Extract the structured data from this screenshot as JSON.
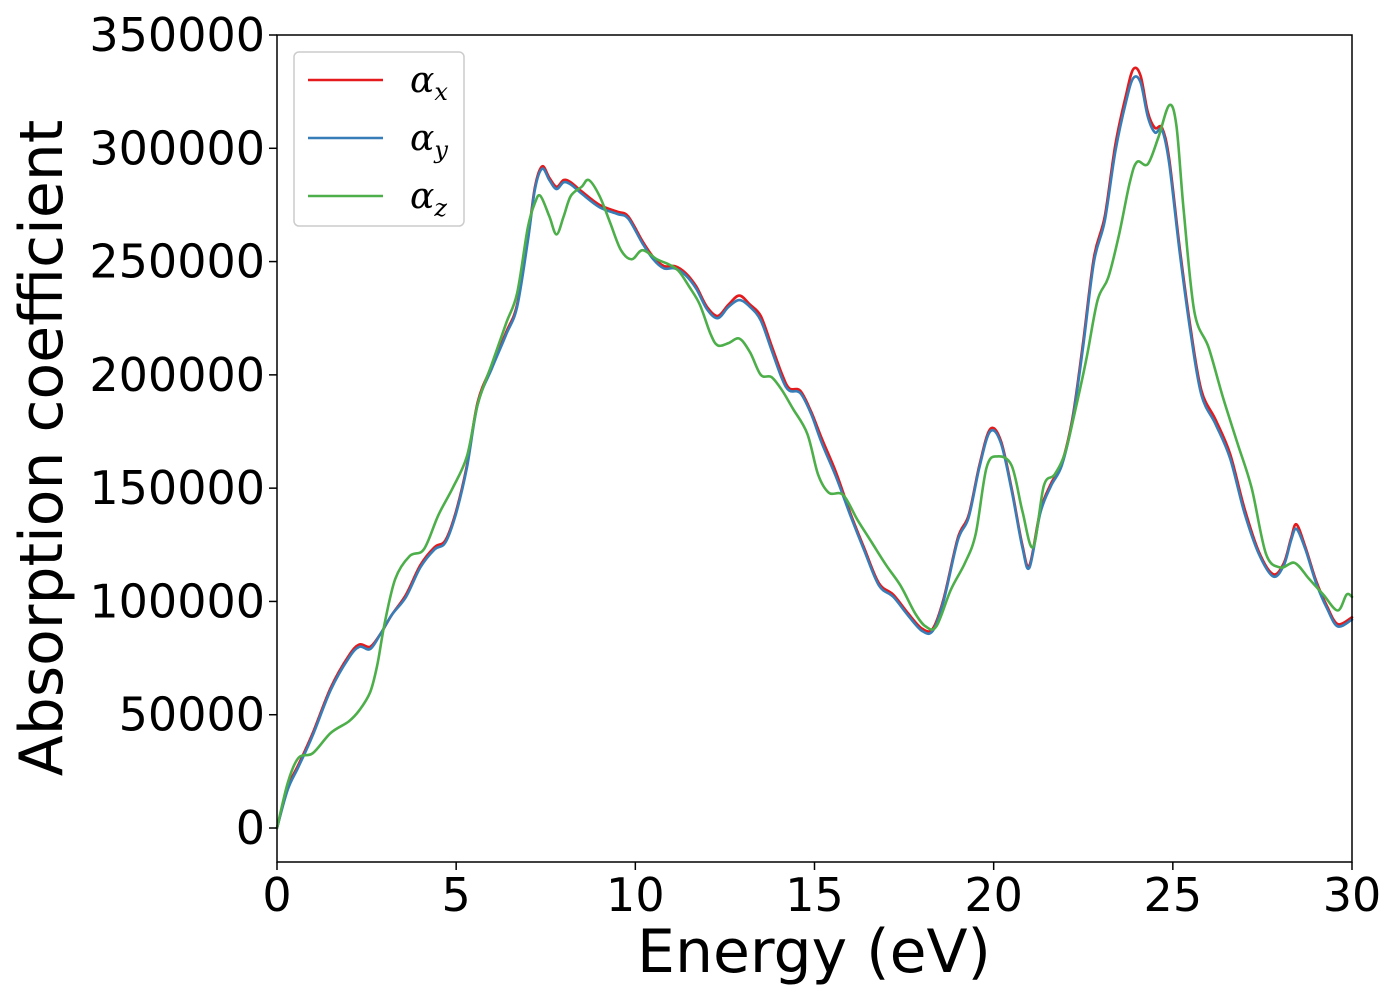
{
  "chart_data": {
    "type": "line",
    "title": "",
    "xlabel": "Energy (eV)",
    "ylabel": "Absorption coefficient",
    "xlim": [
      0,
      30
    ],
    "ylim": [
      -15000,
      350000
    ],
    "xticks": [
      "0",
      "5",
      "10",
      "15",
      "20",
      "25",
      "30"
    ],
    "yticks": [
      "0",
      "50000",
      "100000",
      "150000",
      "200000",
      "250000",
      "300000",
      "350000"
    ],
    "grid": false,
    "legend_position": "top-left",
    "series": [
      {
        "name": "α_x",
        "name_base": "α",
        "name_sub": "x",
        "color": "#e41a1c",
        "points": [
          [
            0,
            0
          ],
          [
            0.3,
            18000
          ],
          [
            0.6,
            28000
          ],
          [
            1.0,
            42000
          ],
          [
            1.5,
            62000
          ],
          [
            2.0,
            76000
          ],
          [
            2.3,
            81000
          ],
          [
            2.6,
            80000
          ],
          [
            2.9,
            86000
          ],
          [
            3.2,
            94000
          ],
          [
            3.6,
            103000
          ],
          [
            4.0,
            116000
          ],
          [
            4.4,
            124000
          ],
          [
            4.7,
            127000
          ],
          [
            5.0,
            140000
          ],
          [
            5.3,
            160000
          ],
          [
            5.6,
            188000
          ],
          [
            6.0,
            204000
          ],
          [
            6.4,
            219000
          ],
          [
            6.7,
            231000
          ],
          [
            7.0,
            260000
          ],
          [
            7.2,
            283000
          ],
          [
            7.4,
            292000
          ],
          [
            7.6,
            287000
          ],
          [
            7.8,
            283000
          ],
          [
            8.0,
            286000
          ],
          [
            8.2,
            285000
          ],
          [
            8.5,
            281000
          ],
          [
            9.0,
            275000
          ],
          [
            9.5,
            272000
          ],
          [
            9.8,
            270000
          ],
          [
            10.2,
            259000
          ],
          [
            10.5,
            252000
          ],
          [
            10.8,
            248000
          ],
          [
            11.1,
            248000
          ],
          [
            11.4,
            245000
          ],
          [
            11.7,
            239000
          ],
          [
            12.0,
            230000
          ],
          [
            12.3,
            226000
          ],
          [
            12.6,
            231000
          ],
          [
            12.9,
            235000
          ],
          [
            13.2,
            231000
          ],
          [
            13.5,
            226000
          ],
          [
            13.8,
            213000
          ],
          [
            14.1,
            200000
          ],
          [
            14.3,
            194000
          ],
          [
            14.6,
            193000
          ],
          [
            14.9,
            184000
          ],
          [
            15.2,
            172000
          ],
          [
            15.6,
            157000
          ],
          [
            16.0,
            139000
          ],
          [
            16.4,
            123000
          ],
          [
            16.8,
            108000
          ],
          [
            17.2,
            103000
          ],
          [
            17.6,
            95000
          ],
          [
            18.0,
            88000
          ],
          [
            18.3,
            88000
          ],
          [
            18.6,
            101000
          ],
          [
            19.0,
            128000
          ],
          [
            19.3,
            138000
          ],
          [
            19.6,
            160000
          ],
          [
            19.9,
            176000
          ],
          [
            20.2,
            171000
          ],
          [
            20.5,
            150000
          ],
          [
            20.8,
            125000
          ],
          [
            21.0,
            116000
          ],
          [
            21.3,
            140000
          ],
          [
            21.6,
            152000
          ],
          [
            21.9,
            161000
          ],
          [
            22.2,
            181000
          ],
          [
            22.5,
            215000
          ],
          [
            22.8,
            252000
          ],
          [
            23.1,
            270000
          ],
          [
            23.4,
            302000
          ],
          [
            23.7,
            324000
          ],
          [
            23.9,
            335000
          ],
          [
            24.1,
            332000
          ],
          [
            24.3,
            316000
          ],
          [
            24.5,
            309000
          ],
          [
            24.7,
            309000
          ],
          [
            24.9,
            295000
          ],
          [
            25.2,
            255000
          ],
          [
            25.5,
            220000
          ],
          [
            25.8,
            193000
          ],
          [
            26.2,
            180000
          ],
          [
            26.6,
            165000
          ],
          [
            27.0,
            141000
          ],
          [
            27.4,
            122000
          ],
          [
            27.8,
            112000
          ],
          [
            28.1,
            117000
          ],
          [
            28.3,
            128000
          ],
          [
            28.45,
            134000
          ],
          [
            28.7,
            124000
          ],
          [
            29.0,
            109000
          ],
          [
            29.3,
            98000
          ],
          [
            29.6,
            90000
          ],
          [
            30.0,
            93000
          ]
        ]
      },
      {
        "name": "α_y",
        "name_base": "α",
        "name_sub": "y",
        "color": "#377eb8",
        "points": [
          [
            0,
            0
          ],
          [
            0.3,
            17000
          ],
          [
            0.6,
            27000
          ],
          [
            1.0,
            41000
          ],
          [
            1.5,
            61000
          ],
          [
            2.0,
            75000
          ],
          [
            2.3,
            80000
          ],
          [
            2.6,
            79000
          ],
          [
            2.9,
            86000
          ],
          [
            3.2,
            94000
          ],
          [
            3.6,
            102000
          ],
          [
            4.0,
            115000
          ],
          [
            4.4,
            123000
          ],
          [
            4.7,
            126000
          ],
          [
            5.0,
            139000
          ],
          [
            5.3,
            159000
          ],
          [
            5.6,
            187000
          ],
          [
            6.0,
            203000
          ],
          [
            6.4,
            218000
          ],
          [
            6.7,
            230000
          ],
          [
            7.0,
            259000
          ],
          [
            7.2,
            282000
          ],
          [
            7.4,
            291000
          ],
          [
            7.6,
            286000
          ],
          [
            7.8,
            282000
          ],
          [
            8.0,
            285000
          ],
          [
            8.2,
            284000
          ],
          [
            8.5,
            280000
          ],
          [
            9.0,
            274000
          ],
          [
            9.5,
            271000
          ],
          [
            9.8,
            269000
          ],
          [
            10.2,
            258000
          ],
          [
            10.5,
            251000
          ],
          [
            10.8,
            247000
          ],
          [
            11.1,
            247000
          ],
          [
            11.4,
            244000
          ],
          [
            11.7,
            238000
          ],
          [
            12.0,
            229000
          ],
          [
            12.3,
            225000
          ],
          [
            12.6,
            230000
          ],
          [
            12.9,
            233000
          ],
          [
            13.2,
            230000
          ],
          [
            13.5,
            224000
          ],
          [
            13.8,
            211000
          ],
          [
            14.1,
            198000
          ],
          [
            14.3,
            193000
          ],
          [
            14.6,
            192000
          ],
          [
            14.9,
            183000
          ],
          [
            15.2,
            170000
          ],
          [
            15.6,
            155000
          ],
          [
            16.0,
            138000
          ],
          [
            16.4,
            122000
          ],
          [
            16.8,
            107000
          ],
          [
            17.2,
            102000
          ],
          [
            17.6,
            94000
          ],
          [
            18.0,
            87000
          ],
          [
            18.3,
            87000
          ],
          [
            18.6,
            100000
          ],
          [
            19.0,
            127000
          ],
          [
            19.3,
            137000
          ],
          [
            19.6,
            159000
          ],
          [
            19.9,
            175000
          ],
          [
            20.2,
            170000
          ],
          [
            20.5,
            149000
          ],
          [
            20.8,
            124000
          ],
          [
            21.0,
            115000
          ],
          [
            21.3,
            139000
          ],
          [
            21.6,
            151000
          ],
          [
            21.9,
            160000
          ],
          [
            22.2,
            180000
          ],
          [
            22.5,
            213000
          ],
          [
            22.8,
            250000
          ],
          [
            23.1,
            268000
          ],
          [
            23.4,
            299000
          ],
          [
            23.7,
            321000
          ],
          [
            23.9,
            331000
          ],
          [
            24.1,
            329000
          ],
          [
            24.3,
            314000
          ],
          [
            24.5,
            307000
          ],
          [
            24.7,
            308000
          ],
          [
            24.9,
            293000
          ],
          [
            25.2,
            253000
          ],
          [
            25.5,
            218000
          ],
          [
            25.8,
            191000
          ],
          [
            26.2,
            178000
          ],
          [
            26.6,
            163000
          ],
          [
            27.0,
            139000
          ],
          [
            27.4,
            121000
          ],
          [
            27.8,
            111000
          ],
          [
            28.1,
            116000
          ],
          [
            28.3,
            127000
          ],
          [
            28.45,
            132000
          ],
          [
            28.7,
            123000
          ],
          [
            29.0,
            108000
          ],
          [
            29.3,
            97000
          ],
          [
            29.6,
            89000
          ],
          [
            30.0,
            92000
          ]
        ]
      },
      {
        "name": "α_z",
        "name_base": "α",
        "name_sub": "z",
        "color": "#4daf4a",
        "points": [
          [
            0,
            0
          ],
          [
            0.3,
            20000
          ],
          [
            0.6,
            31000
          ],
          [
            1.0,
            33000
          ],
          [
            1.5,
            42000
          ],
          [
            2.0,
            47000
          ],
          [
            2.3,
            52000
          ],
          [
            2.6,
            60000
          ],
          [
            2.8,
            72000
          ],
          [
            3.0,
            90000
          ],
          [
            3.3,
            110000
          ],
          [
            3.7,
            120000
          ],
          [
            4.1,
            123000
          ],
          [
            4.5,
            138000
          ],
          [
            4.9,
            150000
          ],
          [
            5.3,
            164000
          ],
          [
            5.6,
            187000
          ],
          [
            6.0,
            205000
          ],
          [
            6.4,
            223000
          ],
          [
            6.7,
            236000
          ],
          [
            7.0,
            265000
          ],
          [
            7.2,
            276000
          ],
          [
            7.35,
            279000
          ],
          [
            7.6,
            270000
          ],
          [
            7.8,
            262000
          ],
          [
            8.0,
            270000
          ],
          [
            8.2,
            279000
          ],
          [
            8.5,
            283000
          ],
          [
            8.7,
            286000
          ],
          [
            9.0,
            279000
          ],
          [
            9.3,
            267000
          ],
          [
            9.6,
            255000
          ],
          [
            9.9,
            251000
          ],
          [
            10.2,
            255000
          ],
          [
            10.6,
            251000
          ],
          [
            10.9,
            249000
          ],
          [
            11.2,
            246000
          ],
          [
            11.5,
            239000
          ],
          [
            11.8,
            231000
          ],
          [
            12.1,
            218000
          ],
          [
            12.3,
            213000
          ],
          [
            12.6,
            214000
          ],
          [
            12.9,
            216000
          ],
          [
            13.2,
            210000
          ],
          [
            13.5,
            200000
          ],
          [
            13.8,
            199000
          ],
          [
            14.1,
            193000
          ],
          [
            14.4,
            185000
          ],
          [
            14.8,
            174000
          ],
          [
            15.1,
            156000
          ],
          [
            15.4,
            148000
          ],
          [
            15.8,
            147000
          ],
          [
            16.2,
            136000
          ],
          [
            16.6,
            126000
          ],
          [
            17.0,
            116000
          ],
          [
            17.4,
            107000
          ],
          [
            17.8,
            95000
          ],
          [
            18.1,
            89000
          ],
          [
            18.4,
            89000
          ],
          [
            18.8,
            105000
          ],
          [
            19.2,
            117000
          ],
          [
            19.5,
            130000
          ],
          [
            19.8,
            159000
          ],
          [
            20.1,
            164000
          ],
          [
            20.5,
            160000
          ],
          [
            20.8,
            140000
          ],
          [
            21.1,
            124000
          ],
          [
            21.4,
            151000
          ],
          [
            21.7,
            156000
          ],
          [
            22.0,
            166000
          ],
          [
            22.3,
            186000
          ],
          [
            22.6,
            208000
          ],
          [
            22.9,
            233000
          ],
          [
            23.2,
            243000
          ],
          [
            23.5,
            262000
          ],
          [
            23.8,
            285000
          ],
          [
            24.0,
            294000
          ],
          [
            24.3,
            293000
          ],
          [
            24.6,
            305000
          ],
          [
            24.9,
            319000
          ],
          [
            25.1,
            310000
          ],
          [
            25.3,
            273000
          ],
          [
            25.6,
            228000
          ],
          [
            26.0,
            212000
          ],
          [
            26.4,
            190000
          ],
          [
            26.8,
            170000
          ],
          [
            27.2,
            150000
          ],
          [
            27.6,
            121000
          ],
          [
            28.0,
            115000
          ],
          [
            28.4,
            117000
          ],
          [
            28.8,
            110000
          ],
          [
            29.2,
            103000
          ],
          [
            29.6,
            96000
          ],
          [
            29.85,
            103000
          ],
          [
            30.0,
            102000
          ]
        ]
      }
    ]
  }
}
